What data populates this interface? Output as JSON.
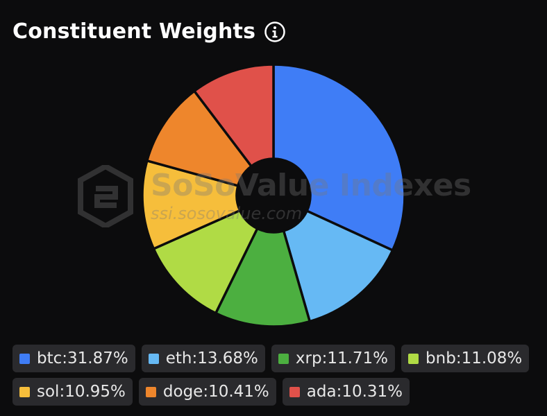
{
  "header": {
    "title": "Constituent Weights",
    "info_icon": "info-icon"
  },
  "watermark": {
    "brand": "SoSoValue Indexes",
    "url": "ssi.sosovalue.com"
  },
  "chart_data": {
    "type": "pie",
    "donut": true,
    "title": "Constituent Weights",
    "legend_placement": "bottom",
    "slices": [
      {
        "label": "btc",
        "value": 31.87,
        "display": "btc:31.87%",
        "color": "#3f7df6"
      },
      {
        "label": "eth",
        "value": 13.68,
        "display": "eth:13.68%",
        "color": "#66b9f4"
      },
      {
        "label": "xrp",
        "value": 11.71,
        "display": "xrp:11.71%",
        "color": "#4caf40"
      },
      {
        "label": "bnb",
        "value": 11.08,
        "display": "bnb:11.08%",
        "color": "#b0db45"
      },
      {
        "label": "sol",
        "value": 10.95,
        "display": "sol:10.95%",
        "color": "#f6be3b"
      },
      {
        "label": "doge",
        "value": 10.41,
        "display": "doge:10.41%",
        "color": "#ee862c"
      },
      {
        "label": "ada",
        "value": 10.31,
        "display": "ada:10.31%",
        "color": "#e0514a"
      }
    ]
  }
}
